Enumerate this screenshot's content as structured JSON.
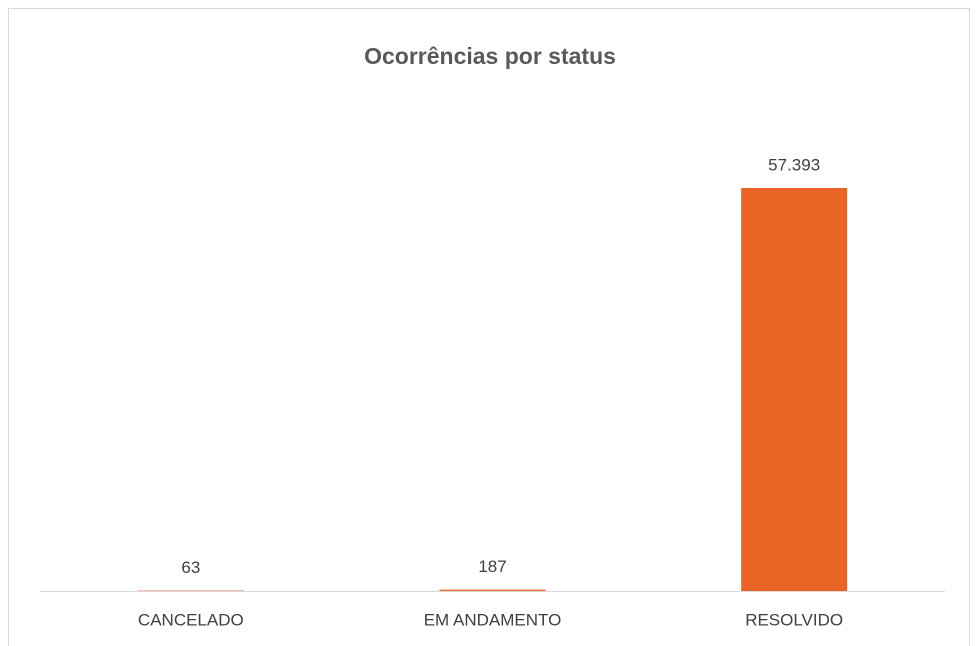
{
  "chart_data": {
    "type": "bar",
    "title": "Ocorrências por status",
    "categories": [
      "CANCELADO",
      "EM ANDAMENTO",
      "RESOLVIDO"
    ],
    "values": [
      63,
      187,
      57393
    ],
    "value_labels": [
      "63",
      "187",
      "57.393"
    ],
    "color": "#ea6426"
  }
}
